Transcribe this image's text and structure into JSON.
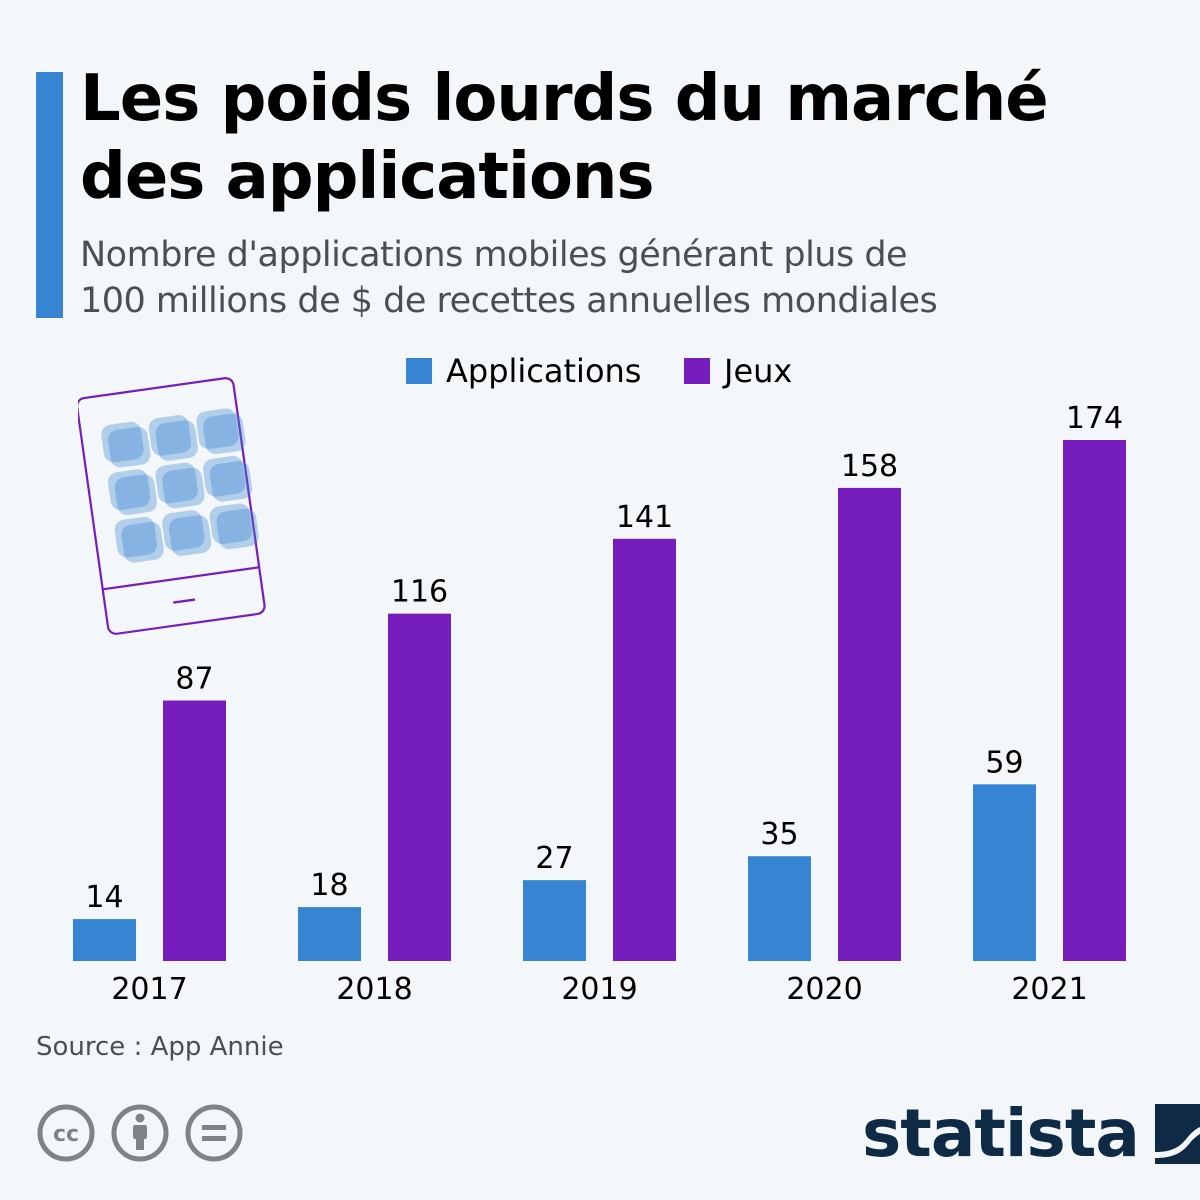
{
  "header": {
    "title_line1": "Les poids lourds du marché",
    "title_line2": "des applications",
    "subtitle_line1": "Nombre d'applications mobiles générant plus de",
    "subtitle_line2": "100 millions de $ de recettes annuelles mondiales"
  },
  "colors": {
    "accent": "#3784d2",
    "applications": "#3784d2",
    "jeux": "#761dbd",
    "phone_outline": "#761dbd",
    "background": "#f4f7fa",
    "logo": "#0f2a44"
  },
  "icons": {
    "illustration": "tablet-apps-icon",
    "license": [
      "cc-icon",
      "attribution-icon",
      "no-derivatives-icon"
    ],
    "logo_mark": "statista-logo-icon"
  },
  "chart_data": {
    "type": "bar",
    "title": "Les poids lourds du marché des applications",
    "subtitle": "Nombre d'applications mobiles générant plus de 100 millions de $ de recettes annuelles mondiales",
    "categories": [
      "2017",
      "2018",
      "2019",
      "2020",
      "2021"
    ],
    "series": [
      {
        "name": "Applications",
        "color": "#3784d2",
        "values": [
          14,
          18,
          27,
          35,
          59
        ]
      },
      {
        "name": "Jeux",
        "color": "#761dbd",
        "values": [
          87,
          116,
          141,
          158,
          174
        ]
      }
    ],
    "xlabel": "",
    "ylabel": "",
    "ylim": [
      0,
      174
    ],
    "grid": false,
    "y_axis_visible": false,
    "data_labels": true,
    "legend_position": "top-center"
  },
  "footer": {
    "source": "Source : App Annie",
    "logo_text": "statista"
  }
}
